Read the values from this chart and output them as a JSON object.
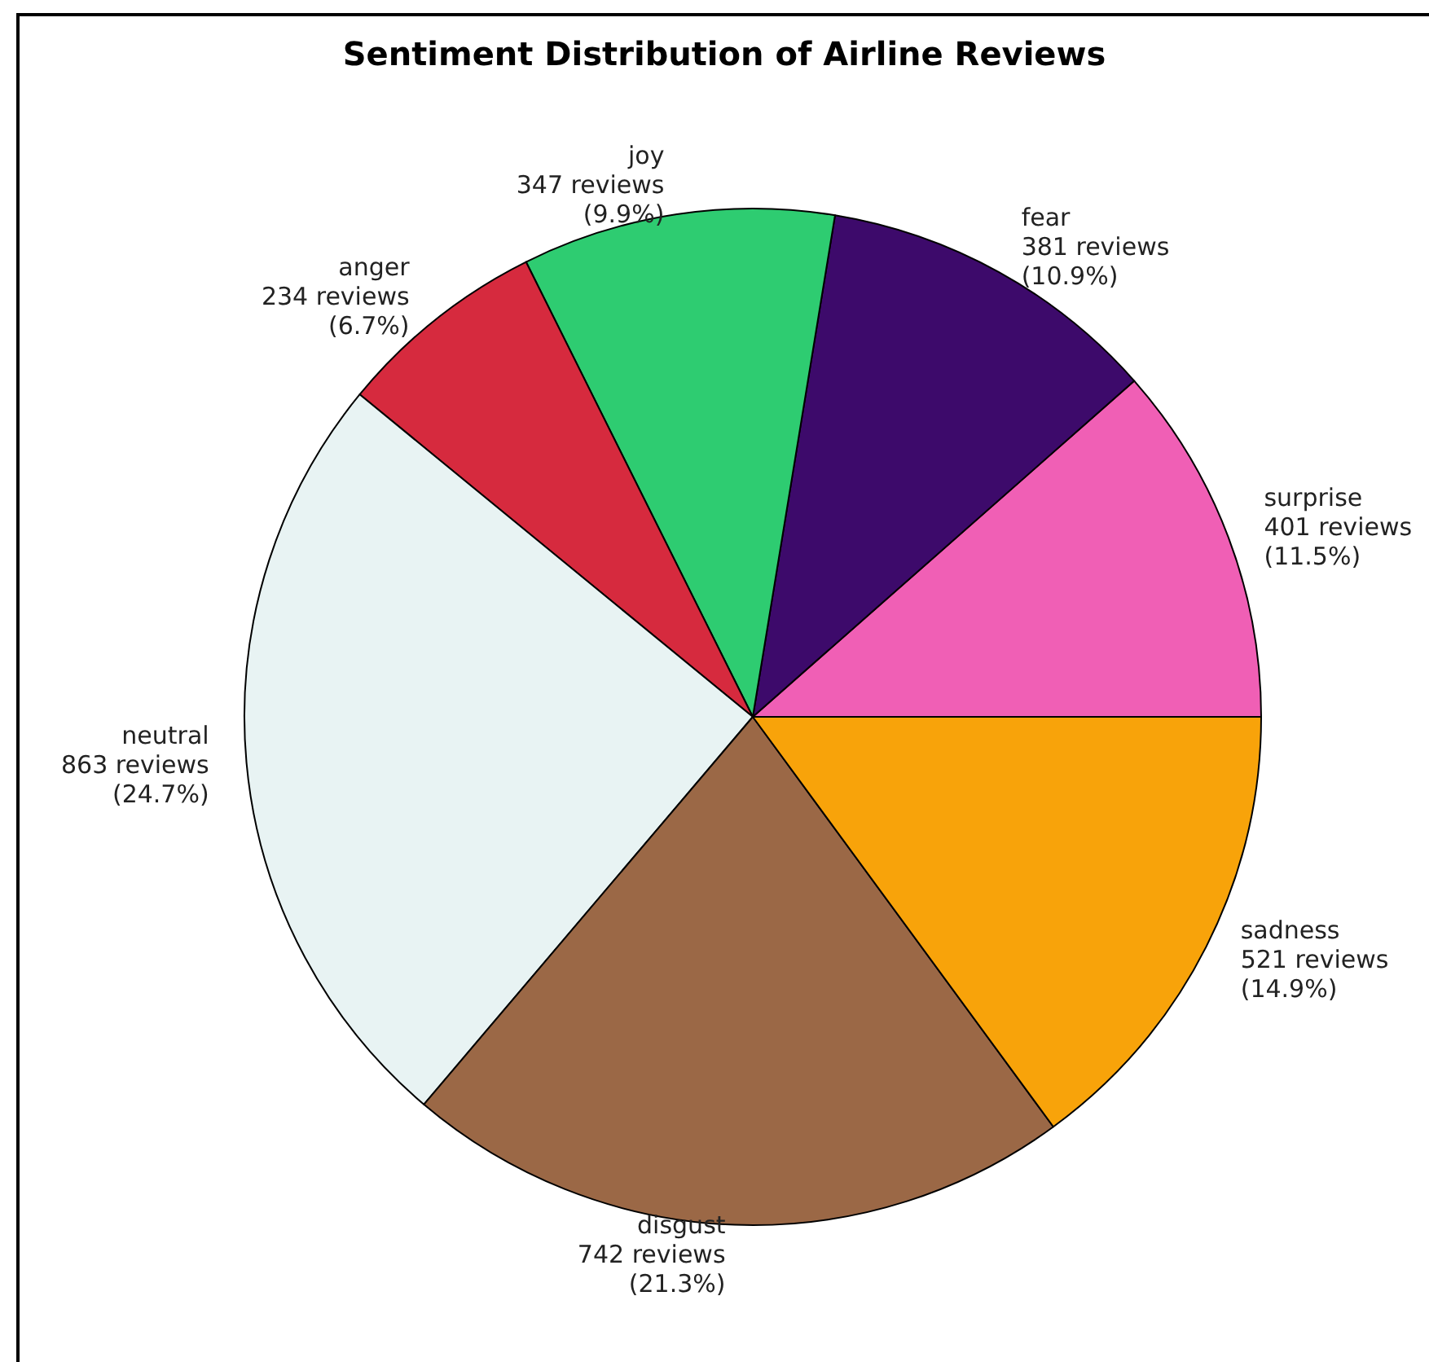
{
  "chart_data": {
    "type": "pie",
    "title": "Sentiment Distribution of Airline Reviews",
    "categories": [
      "surprise",
      "fear",
      "joy",
      "anger",
      "neutral",
      "disgust",
      "sadness"
    ],
    "values": [
      401,
      381,
      347,
      234,
      863,
      742,
      521
    ],
    "value_labels": [
      "401 reviews\n(11.5%)",
      "381 reviews\n(10.9%)",
      "347 reviews\n(9.9%)",
      "234 reviews\n(6.7%)",
      "863 reviews\n(24.7%)",
      "742 reviews\n(21.3%)",
      "521 reviews\n(14.9%)"
    ],
    "colors": [
      "#f05fb5",
      "#3d0a6b",
      "#2ecc71",
      "#d62a3e",
      "#e8f3f3",
      "#9b6846",
      "#f8a30a"
    ],
    "legend": false
  }
}
